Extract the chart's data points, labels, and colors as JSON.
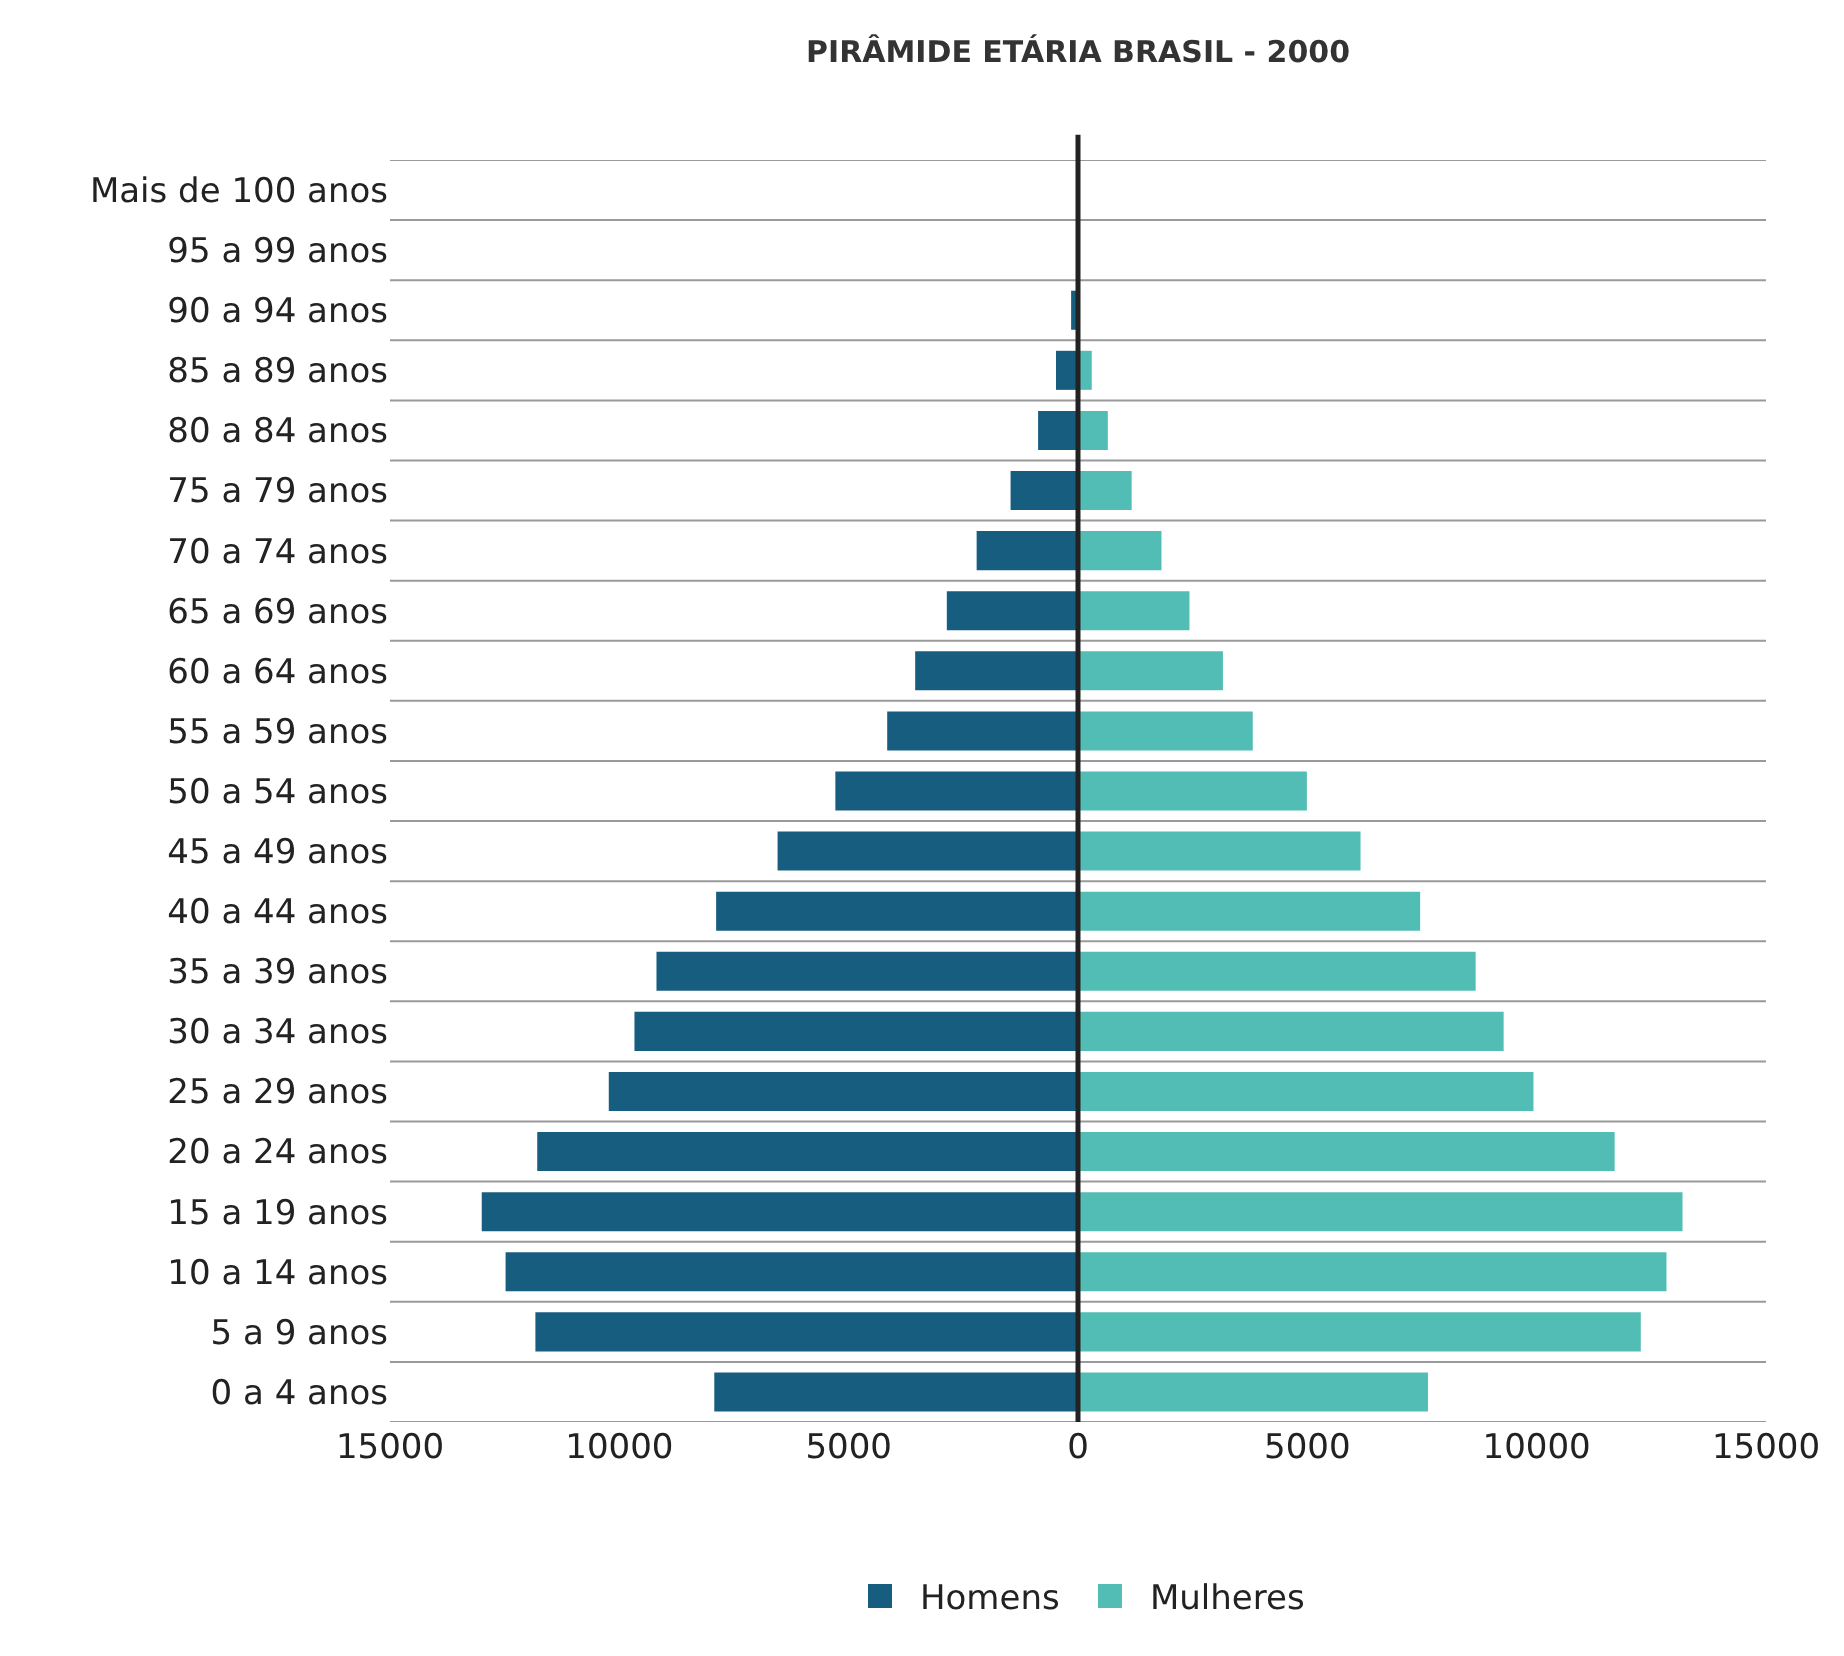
{
  "chart_data": {
    "type": "bar",
    "orientation": "horizontal",
    "title": "PIRÂMIDE ETÁRIA BRASIL - 2000",
    "categories": [
      "Mais de 100 anos",
      "95 a 99 anos",
      "90 a 94 anos",
      "85 a 89 anos",
      "80 a 84 anos",
      "75 a 79 anos",
      "70 a 74 anos",
      "65 a 69 anos",
      "60 a 64 anos",
      "55 a 59 anos",
      "50 a 54 anos",
      "45 a 49 anos",
      "40 a 44 anos",
      "35 a 39 anos",
      "30 a 34 anos",
      "25 a 29 anos",
      "20 a 24 anos",
      "15 a 19 anos",
      "10 a 14 anos",
      "5 a 9 anos",
      "0 a 4 anos"
    ],
    "series": [
      {
        "name": "Homens",
        "color": "#175d80",
        "values": [
          0,
          0,
          -150,
          -480,
          -870,
          -1470,
          -2210,
          -2860,
          -3550,
          -4160,
          -5290,
          -6550,
          -7890,
          -9190,
          -9670,
          -10230,
          -11790,
          -13000,
          -12480,
          -11830,
          -7930
        ]
      },
      {
        "name": "Mulheres",
        "color": "#52bdb5",
        "values": [
          0,
          0,
          null,
          300,
          650,
          1170,
          1820,
          2430,
          3160,
          3810,
          4990,
          6160,
          7460,
          8670,
          9280,
          9930,
          11700,
          13180,
          12830,
          12270,
          7630
        ]
      }
    ],
    "xlim": [
      -15000,
      15000
    ],
    "xticks": [
      {
        "value": -15000,
        "label": "15000"
      },
      {
        "value": -10000,
        "label": "10000"
      },
      {
        "value": -5000,
        "label": "5000"
      },
      0,
      5000,
      10000,
      15000
    ],
    "ref_lines": [
      {
        "axis": "x",
        "value": 0,
        "color": "#222222"
      }
    ],
    "grid": "y",
    "legend": "bottom",
    "stacked": true
  }
}
